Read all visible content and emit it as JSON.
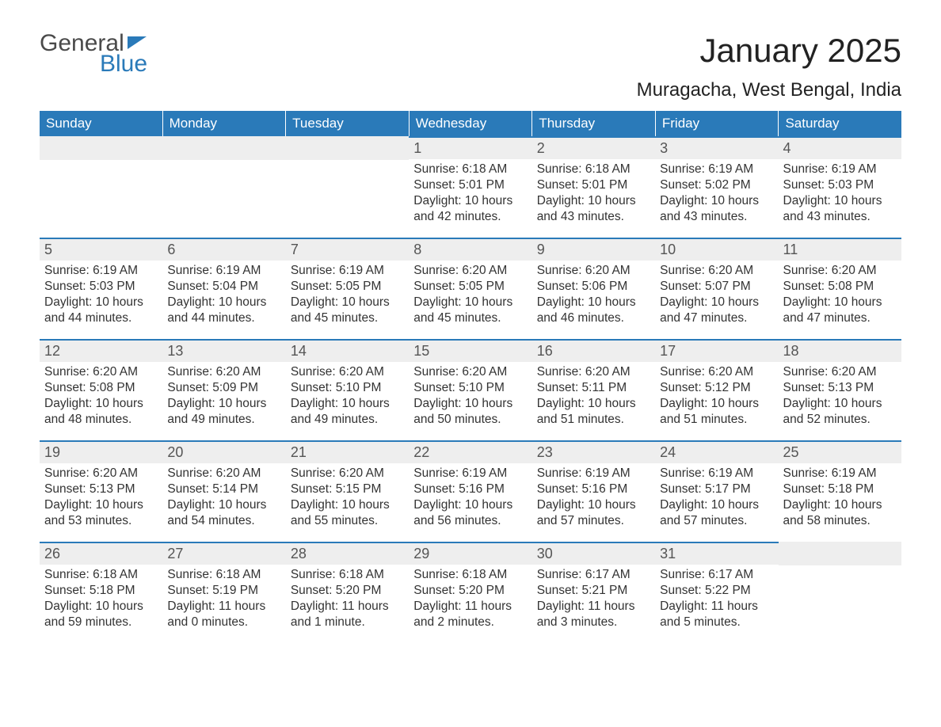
{
  "logo": {
    "general": "General",
    "blue": "Blue"
  },
  "title": "January 2025",
  "location": "Muragacha, West Bengal, India",
  "colors": {
    "brand_blue": "#2a7ab9",
    "header_text": "#ffffff",
    "day_bar_bg": "#eeeeee",
    "body_text": "#333333",
    "background": "#ffffff",
    "day_bar_border": "#2a7ab9"
  },
  "typography": {
    "title_fontsize": 42,
    "location_fontsize": 24,
    "weekday_fontsize": 17,
    "daynum_fontsize": 18,
    "content_fontsize": 15.5,
    "font_family": "Arial"
  },
  "layout": {
    "columns": 7,
    "rows": 5,
    "cell_min_height": 128
  },
  "weekdays": [
    "Sunday",
    "Monday",
    "Tuesday",
    "Wednesday",
    "Thursday",
    "Friday",
    "Saturday"
  ],
  "weeks": [
    [
      {
        "day": "",
        "sunrise": "",
        "sunset": "",
        "daylight": ""
      },
      {
        "day": "",
        "sunrise": "",
        "sunset": "",
        "daylight": ""
      },
      {
        "day": "",
        "sunrise": "",
        "sunset": "",
        "daylight": ""
      },
      {
        "day": "1",
        "sunrise": "Sunrise: 6:18 AM",
        "sunset": "Sunset: 5:01 PM",
        "daylight": "Daylight: 10 hours and 42 minutes."
      },
      {
        "day": "2",
        "sunrise": "Sunrise: 6:18 AM",
        "sunset": "Sunset: 5:01 PM",
        "daylight": "Daylight: 10 hours and 43 minutes."
      },
      {
        "day": "3",
        "sunrise": "Sunrise: 6:19 AM",
        "sunset": "Sunset: 5:02 PM",
        "daylight": "Daylight: 10 hours and 43 minutes."
      },
      {
        "day": "4",
        "sunrise": "Sunrise: 6:19 AM",
        "sunset": "Sunset: 5:03 PM",
        "daylight": "Daylight: 10 hours and 43 minutes."
      }
    ],
    [
      {
        "day": "5",
        "sunrise": "Sunrise: 6:19 AM",
        "sunset": "Sunset: 5:03 PM",
        "daylight": "Daylight: 10 hours and 44 minutes."
      },
      {
        "day": "6",
        "sunrise": "Sunrise: 6:19 AM",
        "sunset": "Sunset: 5:04 PM",
        "daylight": "Daylight: 10 hours and 44 minutes."
      },
      {
        "day": "7",
        "sunrise": "Sunrise: 6:19 AM",
        "sunset": "Sunset: 5:05 PM",
        "daylight": "Daylight: 10 hours and 45 minutes."
      },
      {
        "day": "8",
        "sunrise": "Sunrise: 6:20 AM",
        "sunset": "Sunset: 5:05 PM",
        "daylight": "Daylight: 10 hours and 45 minutes."
      },
      {
        "day": "9",
        "sunrise": "Sunrise: 6:20 AM",
        "sunset": "Sunset: 5:06 PM",
        "daylight": "Daylight: 10 hours and 46 minutes."
      },
      {
        "day": "10",
        "sunrise": "Sunrise: 6:20 AM",
        "sunset": "Sunset: 5:07 PM",
        "daylight": "Daylight: 10 hours and 47 minutes."
      },
      {
        "day": "11",
        "sunrise": "Sunrise: 6:20 AM",
        "sunset": "Sunset: 5:08 PM",
        "daylight": "Daylight: 10 hours and 47 minutes."
      }
    ],
    [
      {
        "day": "12",
        "sunrise": "Sunrise: 6:20 AM",
        "sunset": "Sunset: 5:08 PM",
        "daylight": "Daylight: 10 hours and 48 minutes."
      },
      {
        "day": "13",
        "sunrise": "Sunrise: 6:20 AM",
        "sunset": "Sunset: 5:09 PM",
        "daylight": "Daylight: 10 hours and 49 minutes."
      },
      {
        "day": "14",
        "sunrise": "Sunrise: 6:20 AM",
        "sunset": "Sunset: 5:10 PM",
        "daylight": "Daylight: 10 hours and 49 minutes."
      },
      {
        "day": "15",
        "sunrise": "Sunrise: 6:20 AM",
        "sunset": "Sunset: 5:10 PM",
        "daylight": "Daylight: 10 hours and 50 minutes."
      },
      {
        "day": "16",
        "sunrise": "Sunrise: 6:20 AM",
        "sunset": "Sunset: 5:11 PM",
        "daylight": "Daylight: 10 hours and 51 minutes."
      },
      {
        "day": "17",
        "sunrise": "Sunrise: 6:20 AM",
        "sunset": "Sunset: 5:12 PM",
        "daylight": "Daylight: 10 hours and 51 minutes."
      },
      {
        "day": "18",
        "sunrise": "Sunrise: 6:20 AM",
        "sunset": "Sunset: 5:13 PM",
        "daylight": "Daylight: 10 hours and 52 minutes."
      }
    ],
    [
      {
        "day": "19",
        "sunrise": "Sunrise: 6:20 AM",
        "sunset": "Sunset: 5:13 PM",
        "daylight": "Daylight: 10 hours and 53 minutes."
      },
      {
        "day": "20",
        "sunrise": "Sunrise: 6:20 AM",
        "sunset": "Sunset: 5:14 PM",
        "daylight": "Daylight: 10 hours and 54 minutes."
      },
      {
        "day": "21",
        "sunrise": "Sunrise: 6:20 AM",
        "sunset": "Sunset: 5:15 PM",
        "daylight": "Daylight: 10 hours and 55 minutes."
      },
      {
        "day": "22",
        "sunrise": "Sunrise: 6:19 AM",
        "sunset": "Sunset: 5:16 PM",
        "daylight": "Daylight: 10 hours and 56 minutes."
      },
      {
        "day": "23",
        "sunrise": "Sunrise: 6:19 AM",
        "sunset": "Sunset: 5:16 PM",
        "daylight": "Daylight: 10 hours and 57 minutes."
      },
      {
        "day": "24",
        "sunrise": "Sunrise: 6:19 AM",
        "sunset": "Sunset: 5:17 PM",
        "daylight": "Daylight: 10 hours and 57 minutes."
      },
      {
        "day": "25",
        "sunrise": "Sunrise: 6:19 AM",
        "sunset": "Sunset: 5:18 PM",
        "daylight": "Daylight: 10 hours and 58 minutes."
      }
    ],
    [
      {
        "day": "26",
        "sunrise": "Sunrise: 6:18 AM",
        "sunset": "Sunset: 5:18 PM",
        "daylight": "Daylight: 10 hours and 59 minutes."
      },
      {
        "day": "27",
        "sunrise": "Sunrise: 6:18 AM",
        "sunset": "Sunset: 5:19 PM",
        "daylight": "Daylight: 11 hours and 0 minutes."
      },
      {
        "day": "28",
        "sunrise": "Sunrise: 6:18 AM",
        "sunset": "Sunset: 5:20 PM",
        "daylight": "Daylight: 11 hours and 1 minute."
      },
      {
        "day": "29",
        "sunrise": "Sunrise: 6:18 AM",
        "sunset": "Sunset: 5:20 PM",
        "daylight": "Daylight: 11 hours and 2 minutes."
      },
      {
        "day": "30",
        "sunrise": "Sunrise: 6:17 AM",
        "sunset": "Sunset: 5:21 PM",
        "daylight": "Daylight: 11 hours and 3 minutes."
      },
      {
        "day": "31",
        "sunrise": "Sunrise: 6:17 AM",
        "sunset": "Sunset: 5:22 PM",
        "daylight": "Daylight: 11 hours and 5 minutes."
      },
      {
        "day": "",
        "sunrise": "",
        "sunset": "",
        "daylight": ""
      }
    ]
  ]
}
